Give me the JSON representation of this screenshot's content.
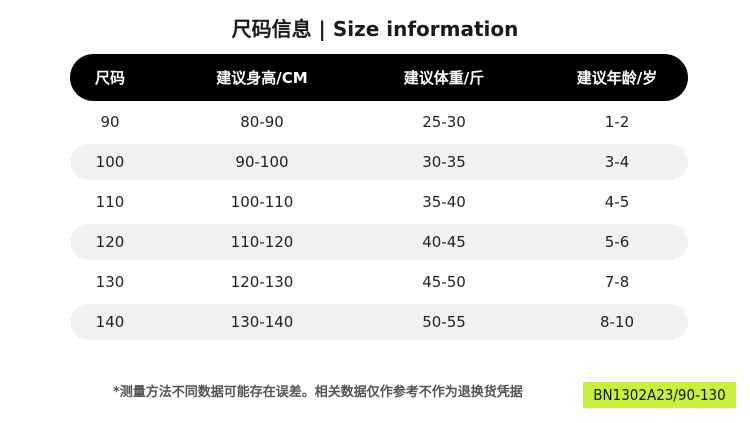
{
  "title": "尺码信息 | Size information",
  "columns": [
    "尺码",
    "建议身高/CM",
    "建议体重/斤",
    "建议年龄/岁"
  ],
  "rows": [
    [
      "90",
      "80-90",
      "25-30",
      "1-2"
    ],
    [
      "100",
      "90-100",
      "30-35",
      "3-4"
    ],
    [
      "110",
      "100-110",
      "35-40",
      "4-5"
    ],
    [
      "120",
      "110-120",
      "40-45",
      "5-6"
    ],
    [
      "130",
      "120-130",
      "45-50",
      "7-8"
    ],
    [
      "140",
      "130-140",
      "50-55",
      "8-10"
    ]
  ],
  "footer_note": "*测量方法不同数据可能存在误差。相关数据仅作参考不作为退换货凭据",
  "sku_label": "BN1302A23/90-130",
  "colors": {
    "header_bg": "#000000",
    "row_shade": "#f1f1f1",
    "sku_label_bg": "#c6f23f"
  }
}
